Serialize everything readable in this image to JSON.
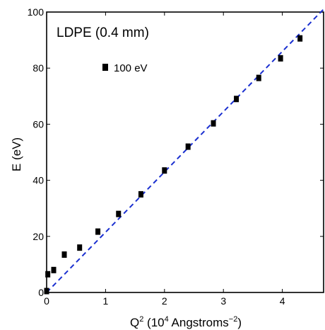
{
  "chart_data": {
    "type": "scatter",
    "title": "",
    "annotation": "LDPE (0.4 mm)",
    "xlabel_parts": [
      "Q",
      "2",
      " (10",
      "4",
      " Angstroms",
      "−2",
      ")"
    ],
    "ylabel": "E (eV)",
    "xlim": [
      0,
      4.7
    ],
    "ylim": [
      0,
      100
    ],
    "xticks": [
      0,
      1,
      2,
      3,
      4
    ],
    "yticks": [
      0,
      20,
      40,
      60,
      80,
      100
    ],
    "grid": false,
    "legend": {
      "position": "top-left",
      "label": "100 eV"
    },
    "series": [
      {
        "name": "100 eV",
        "marker": "square",
        "color": "#000000",
        "points": [
          [
            0.0,
            0.5
          ],
          [
            0.02,
            6.5
          ],
          [
            0.12,
            8.0
          ],
          [
            0.3,
            13.5
          ],
          [
            0.56,
            16.0
          ],
          [
            0.87,
            21.7
          ],
          [
            1.22,
            28.0
          ],
          [
            1.6,
            35.0
          ],
          [
            2.0,
            43.5
          ],
          [
            2.4,
            52.0
          ],
          [
            2.83,
            60.3
          ],
          [
            3.22,
            69.0
          ],
          [
            3.6,
            76.5
          ],
          [
            3.97,
            83.5
          ],
          [
            4.3,
            90.6
          ]
        ]
      }
    ],
    "fit_line": {
      "style": "dashed",
      "color": "#1a2fd0",
      "points": [
        [
          0.0,
          0.0
        ],
        [
          4.7,
          101.4
        ]
      ]
    }
  }
}
